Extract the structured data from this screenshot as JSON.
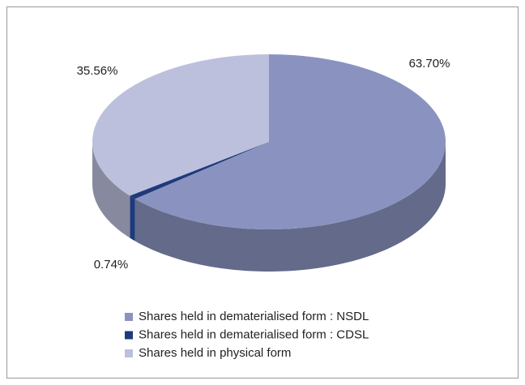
{
  "chart_data": {
    "type": "pie",
    "categories": [
      "Shares held in dematerialised form : NSDL",
      "Shares held in dematerialised form : CDSL",
      "Shares held in physical form"
    ],
    "values": [
      63.7,
      0.74,
      35.56
    ],
    "value_labels": [
      "63.70%",
      "0.74%",
      "35.56%"
    ],
    "colors": [
      "#8a93c0",
      "#1f3a7a",
      "#bcc0dc"
    ]
  }
}
